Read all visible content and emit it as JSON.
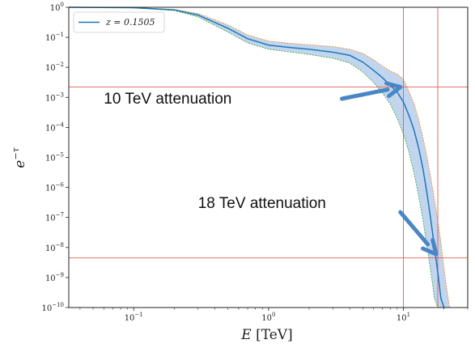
{
  "chart_data": {
    "type": "line",
    "xscale": "log",
    "yscale": "log",
    "xlabel_symbol": "E",
    "xlabel_unit": "[TeV]",
    "ylabel_base": "e",
    "ylabel_exp": "−τ",
    "xlim": [
      0.033,
      30
    ],
    "ylim": [
      1e-10,
      1
    ],
    "x_ticks": [
      {
        "value": 0.1,
        "base": "10",
        "exp": "−1"
      },
      {
        "value": 1,
        "base": "10",
        "exp": "0"
      },
      {
        "value": 10,
        "base": "10",
        "exp": "1"
      }
    ],
    "y_ticks": [
      {
        "value": 1,
        "base": "10",
        "exp": "0"
      },
      {
        "value": 0.1,
        "base": "10",
        "exp": "−1"
      },
      {
        "value": 0.01,
        "base": "10",
        "exp": "−2"
      },
      {
        "value": 0.001,
        "base": "10",
        "exp": "−3"
      },
      {
        "value": 0.0001,
        "base": "10",
        "exp": "−4"
      },
      {
        "value": 1e-05,
        "base": "10",
        "exp": "−5"
      },
      {
        "value": 1e-06,
        "base": "10",
        "exp": "−6"
      },
      {
        "value": 1e-07,
        "base": "10",
        "exp": "−7"
      },
      {
        "value": 1e-08,
        "base": "10",
        "exp": "−8"
      },
      {
        "value": 1e-09,
        "base": "10",
        "exp": "−9"
      },
      {
        "value": 1e-10,
        "base": "10",
        "exp": "−10"
      }
    ],
    "legend": {
      "position": "top-left",
      "label": "z = 0.1505"
    },
    "series": [
      {
        "name": "z = 0.1505",
        "color": "#1f77b4",
        "x": [
          0.033,
          0.1,
          0.2,
          0.3,
          0.5,
          0.7,
          1.0,
          1.5,
          2.0,
          3.0,
          4.0,
          5.0,
          6.0,
          7.0,
          8.0,
          9.0,
          10.0,
          11.0,
          12.0,
          13.0,
          14.0,
          15.0,
          16.0,
          17.0,
          18.0,
          19.0,
          20.0
        ],
        "y": [
          1.0,
          0.97,
          0.82,
          0.55,
          0.2,
          0.09,
          0.055,
          0.045,
          0.04,
          0.032,
          0.025,
          0.015,
          0.008,
          0.0045,
          0.0025,
          0.0015,
          0.0007,
          0.00025,
          8e-05,
          2e-05,
          4e-06,
          6e-07,
          8e-08,
          1e-08,
          1.5e-09,
          2e-10,
          1e-10
        ]
      }
    ],
    "band": {
      "fill": "#aec7e8",
      "upper_color": "#ff7f0e",
      "lower_color": "#2ca02c",
      "x": [
        0.033,
        0.1,
        0.2,
        0.3,
        0.5,
        0.7,
        1.0,
        1.5,
        2.0,
        3.0,
        4.0,
        5.0,
        6.0,
        7.0,
        8.0,
        9.0,
        10.0,
        11.0,
        12.0,
        13.0,
        14.0,
        15.0,
        16.0,
        17.0,
        18.0,
        19.0,
        20.0,
        21.0,
        22.0
      ],
      "upper": [
        1.0,
        0.98,
        0.85,
        0.62,
        0.26,
        0.12,
        0.075,
        0.062,
        0.057,
        0.049,
        0.04,
        0.029,
        0.018,
        0.011,
        0.0075,
        0.006,
        0.004,
        0.0016,
        0.0006,
        0.00018,
        4.5e-05,
        1e-05,
        2e-06,
        4e-07,
        8e-08,
        1.5e-08,
        2e-09,
        4e-10,
        1e-10
      ],
      "lower": [
        1.0,
        0.96,
        0.78,
        0.48,
        0.15,
        0.065,
        0.04,
        0.032,
        0.027,
        0.02,
        0.014,
        0.007,
        0.0032,
        0.0014,
        0.0006,
        0.0002,
        6e-05,
        1.5e-05,
        3e-06,
        5e-07,
        8e-08,
        1e-08,
        1.5e-09,
        2e-10,
        1e-10,
        1e-10,
        1e-10,
        1e-10,
        1e-10
      ]
    },
    "reference_lines": {
      "color": "#e06050",
      "vertical": [
        10,
        18
      ],
      "horizontal": [
        0.0022,
        4.5e-09
      ]
    },
    "annotations": [
      {
        "text": "10 TeV attenuation",
        "text_x": 0.06,
        "text_y": 0.0009,
        "arrow_from": [
          3.5,
          0.0009
        ],
        "arrow_to": [
          9.5,
          0.0022
        ]
      },
      {
        "text": "18 TeV attenuation",
        "text_x": 0.3,
        "text_y": 3e-07,
        "arrow_from": [
          9.5,
          1.5e-07
        ],
        "arrow_to": [
          17.5,
          6e-09
        ]
      }
    ],
    "arrow_color": "#4a86c5"
  }
}
